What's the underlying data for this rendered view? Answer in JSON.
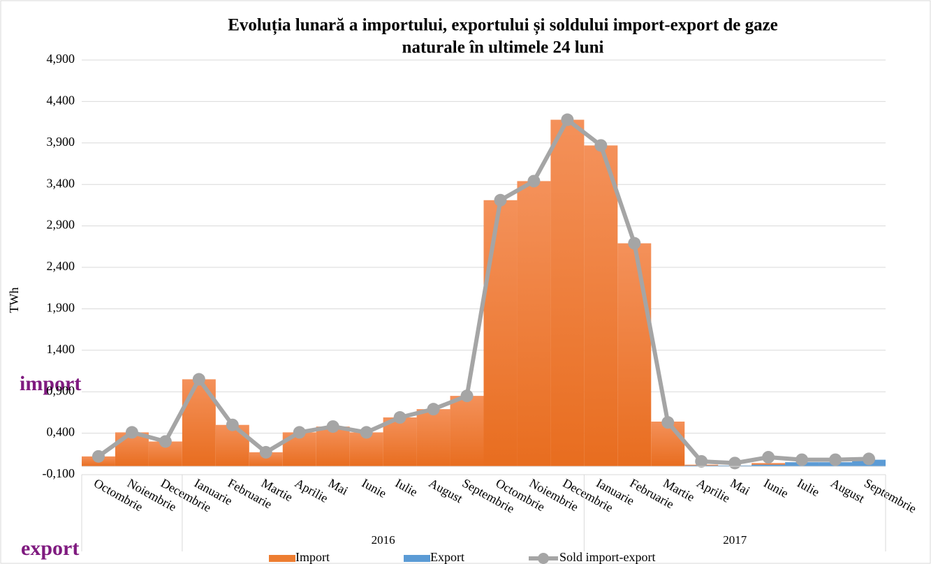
{
  "chart_data": {
    "type": "combo",
    "title": [
      "Evoluția lunară a importului, exportului și soldului import-export de gaze",
      "naturale în ultimele 24 luni"
    ],
    "y_label": "TWh",
    "annotations": [
      "import",
      "export"
    ],
    "categories": [
      "Octombrie",
      "Noiembrie",
      "Decembrie",
      "Ianuarie",
      "Februarie",
      "Martie",
      "Aprilie",
      "Mai",
      "Iunie",
      "Iulie",
      "August",
      "Septembrie",
      "Octombrie",
      "Noiembrie",
      "Decembrie",
      "Ianuarie",
      "Februarie",
      "Martie",
      "Aprilie",
      "Mai",
      "Iunie",
      "Iulie",
      "August",
      "Septembrie"
    ],
    "groups": [
      {
        "label": null,
        "months": 3
      },
      {
        "label": "2016",
        "months": 12
      },
      {
        "label": "2017",
        "months": 9
      }
    ],
    "series": [
      {
        "name": "Import",
        "kind": "bar",
        "color": "#ed7d31",
        "values": [
          0.12,
          0.41,
          0.3,
          1.05,
          0.5,
          0.17,
          0.41,
          0.48,
          0.41,
          0.59,
          0.69,
          0.85,
          3.21,
          3.44,
          4.18,
          3.87,
          2.69,
          0.54,
          0.02,
          0.01,
          0.04,
          0.03,
          0.03,
          0.03
        ]
      },
      {
        "name": "Export",
        "kind": "bar",
        "color": "#5b9bd5",
        "values": [
          0,
          0,
          0,
          0,
          0,
          0,
          0,
          0,
          0,
          0,
          0,
          0,
          0,
          0,
          0,
          0,
          0,
          0,
          0.01,
          0.01,
          0.02,
          0.05,
          0.05,
          0.08
        ]
      },
      {
        "name": "Sold import-export",
        "kind": "line",
        "color": "#a5a5a5",
        "values": [
          0.12,
          0.41,
          0.3,
          1.05,
          0.5,
          0.17,
          0.41,
          0.48,
          0.41,
          0.59,
          0.69,
          0.85,
          3.21,
          3.44,
          4.18,
          3.87,
          2.69,
          0.53,
          0.06,
          0.04,
          0.11,
          0.08,
          0.08,
          0.09
        ]
      }
    ],
    "ylim": [
      -0.1,
      4.9
    ],
    "yticks": [
      {
        "value": -0.1,
        "label": "-0,100"
      },
      {
        "value": 0.4,
        "label": "0,400"
      },
      {
        "value": 0.9,
        "label": "0,900"
      },
      {
        "value": 1.4,
        "label": "1,400"
      },
      {
        "value": 1.9,
        "label": "1,900"
      },
      {
        "value": 2.4,
        "label": "2,400"
      },
      {
        "value": 2.9,
        "label": "2,900"
      },
      {
        "value": 3.4,
        "label": "3,400"
      },
      {
        "value": 3.9,
        "label": "3,900"
      },
      {
        "value": 4.4,
        "label": "4,400"
      },
      {
        "value": 4.9,
        "label": "4,900"
      }
    ],
    "grid": true
  }
}
